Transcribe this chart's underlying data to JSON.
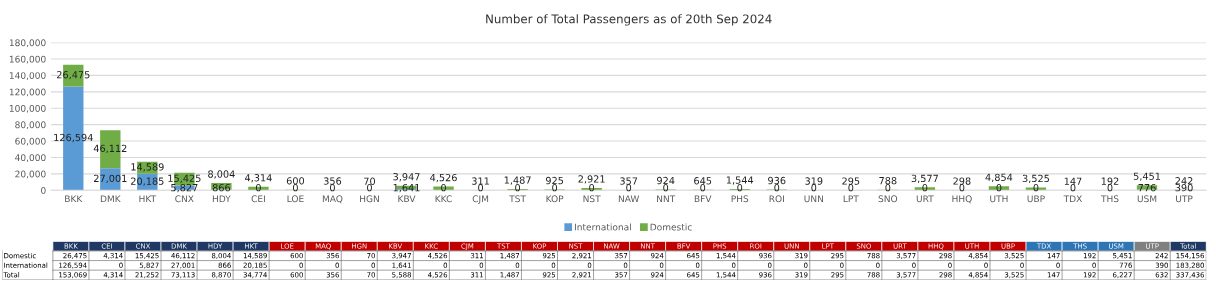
{
  "chart_data": [
    {
      "type": "bar",
      "title": "Number of Total Passengers as of 20th Sep 2024",
      "stacked": true,
      "grid": "y",
      "legend": "bottom",
      "categories": [
        "BKK",
        "DMK",
        "HKT",
        "CNX",
        "HDY",
        "CEI",
        "LOE",
        "MAQ",
        "HGN",
        "KBV",
        "KKC",
        "CJM",
        "TST",
        "KOP",
        "NST",
        "NAW",
        "NNT",
        "BFV",
        "PHS",
        "ROI",
        "UNN",
        "LPT",
        "SNO",
        "URT",
        "HHQ",
        "UTH",
        "UBP",
        "TDX",
        "THS",
        "USM",
        "UTP"
      ],
      "series": [
        {
          "name": "International",
          "color": "#5b9bd5",
          "values": [
            126594,
            27001,
            20185,
            5827,
            866,
            0,
            0,
            0,
            0,
            1641,
            0,
            0,
            0,
            0,
            0,
            0,
            0,
            0,
            0,
            0,
            0,
            0,
            0,
            0,
            0,
            0,
            0,
            0,
            0,
            776,
            390
          ],
          "value_labels": [
            "126,594",
            "27,001",
            "20,185",
            "5,827",
            "866",
            "0",
            "0",
            "0",
            "0",
            "1,641",
            "0",
            "0",
            "0",
            "0",
            "0",
            "0",
            "0",
            "0",
            "0",
            "0",
            "0",
            "0",
            "0",
            "0",
            "0",
            "0",
            "0",
            "0",
            "0",
            "776",
            "390"
          ]
        },
        {
          "name": "Domestic",
          "color": "#70ad47",
          "values": [
            26475,
            46112,
            14589,
            15425,
            8004,
            4314,
            600,
            356,
            70,
            3947,
            4526,
            311,
            1487,
            925,
            2921,
            357,
            924,
            645,
            1544,
            936,
            319,
            295,
            788,
            3577,
            298,
            4854,
            3525,
            147,
            192,
            5451,
            242
          ],
          "value_labels": [
            "26,475",
            "46,112",
            "14,589",
            "15,425",
            "8,004",
            "4,314",
            "600",
            "356",
            "70",
            "3,947",
            "4,526",
            "311",
            "1,487",
            "925",
            "2,921",
            "357",
            "924",
            "645",
            "1,544",
            "936",
            "319",
            "295",
            "788",
            "3,577",
            "298",
            "4,854",
            "3,525",
            "147",
            "192",
            "5,451",
            "242"
          ]
        }
      ],
      "ylim": [
        0,
        180000
      ],
      "yticks": [
        {
          "value": 0,
          "label": "0"
        },
        {
          "value": 20000,
          "label": "20,000"
        },
        {
          "value": 40000,
          "label": "40,000"
        },
        {
          "value": 60000,
          "label": "60,000"
        },
        {
          "value": 80000,
          "label": "80,000"
        },
        {
          "value": 100000,
          "label": "100,000"
        },
        {
          "value": 120000,
          "label": "120,000"
        },
        {
          "value": 140000,
          "label": "140,000"
        },
        {
          "value": 160000,
          "label": "160,000"
        },
        {
          "value": 180000,
          "label": "180,000"
        }
      ]
    },
    {
      "type": "other",
      "categories": [
        "BKK",
        "CEI",
        "CNX",
        "DMK",
        "HDY",
        "HKT",
        "LOE",
        "MAQ",
        "HGN",
        "KBV",
        "KKC",
        "CJM",
        "TST",
        "KOP",
        "NST",
        "NAW",
        "NNT",
        "BFV",
        "PHS",
        "ROI",
        "UNN",
        "LPT",
        "SNO",
        "URT",
        "HHQ",
        "UTH",
        "UBP",
        "TDX",
        "THS",
        "USM",
        "UTP",
        "Total"
      ],
      "colors": [
        "#1f3864",
        "#1f3864",
        "#1f3864",
        "#1f3864",
        "#1f3864",
        "#1f3864",
        "#c00000",
        "#c00000",
        "#c00000",
        "#c00000",
        "#c00000",
        "#c00000",
        "#c00000",
        "#c00000",
        "#c00000",
        "#c00000",
        "#c00000",
        "#c00000",
        "#c00000",
        "#c00000",
        "#c00000",
        "#c00000",
        "#c00000",
        "#c00000",
        "#c00000",
        "#c00000",
        "#c00000",
        "#2e75b6",
        "#2e75b6",
        "#2e75b6",
        "#808080",
        "#203864"
      ],
      "series": [
        {
          "name": "Domestic",
          "values": [
            26475,
            4314,
            15425,
            46112,
            8004,
            14589,
            600,
            356,
            70,
            3947,
            4526,
            311,
            1487,
            925,
            2921,
            357,
            924,
            645,
            1544,
            936,
            319,
            295,
            788,
            3577,
            298,
            4854,
            3525,
            147,
            192,
            5451,
            242,
            154156
          ],
          "value_labels": [
            "26,475",
            "4,314",
            "15,425",
            "46,112",
            "8,004",
            "14,589",
            "600",
            "356",
            "70",
            "3,947",
            "4,526",
            "311",
            "1,487",
            "925",
            "2,921",
            "357",
            "924",
            "645",
            "1,544",
            "936",
            "319",
            "295",
            "788",
            "3,577",
            "298",
            "4,854",
            "3,525",
            "147",
            "192",
            "5,451",
            "242",
            "154,156"
          ]
        },
        {
          "name": "International",
          "values": [
            126594,
            0,
            5827,
            27001,
            866,
            20185,
            0,
            0,
            0,
            1641,
            0,
            0,
            0,
            0,
            0,
            0,
            0,
            0,
            0,
            0,
            0,
            0,
            0,
            0,
            0,
            0,
            0,
            0,
            0,
            776,
            390,
            183280
          ],
          "value_labels": [
            "126,594",
            "0",
            "5,827",
            "27,001",
            "866",
            "20,185",
            "0",
            "0",
            "0",
            "1,641",
            "0",
            "0",
            "0",
            "0",
            "0",
            "0",
            "0",
            "0",
            "0",
            "0",
            "0",
            "0",
            "0",
            "0",
            "0",
            "0",
            "0",
            "0",
            "0",
            "776",
            "390",
            "183,280"
          ]
        },
        {
          "name": "Total",
          "values": [
            153069,
            4314,
            21252,
            73113,
            8870,
            34774,
            600,
            356,
            70,
            5588,
            4526,
            311,
            1487,
            925,
            2921,
            357,
            924,
            645,
            1544,
            936,
            319,
            295,
            788,
            3577,
            298,
            4854,
            3525,
            147,
            192,
            6227,
            632,
            337436
          ],
          "value_labels": [
            "153,069",
            "4,314",
            "21,252",
            "73,113",
            "8,870",
            "34,774",
            "600",
            "356",
            "70",
            "5,588",
            "4,526",
            "311",
            "1,487",
            "925",
            "2,921",
            "357",
            "924",
            "645",
            "1,544",
            "936",
            "319",
            "295",
            "788",
            "3,577",
            "298",
            "4,854",
            "3,525",
            "147",
            "192",
            "6,227",
            "632",
            "337,436"
          ]
        }
      ]
    }
  ]
}
